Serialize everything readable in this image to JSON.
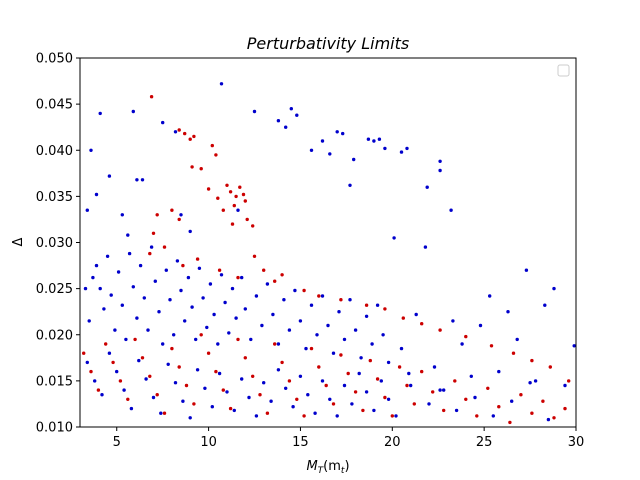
{
  "chart_data": {
    "type": "scatter",
    "title": "Perturbativity Limits",
    "xlabel": "M_T(m_t)",
    "xlabel_main": "M",
    "xlabel_sub": "T",
    "xlabel_rest": "(m",
    "xlabel_sub2": "t",
    "xlabel_end": ")",
    "ylabel": "Δ",
    "xlim": [
      3,
      30
    ],
    "ylim": [
      0.01,
      0.05
    ],
    "xticks": [
      5,
      10,
      15,
      20,
      25,
      30
    ],
    "yticks": [
      0.01,
      0.015,
      0.02,
      0.025,
      0.03,
      0.035,
      0.04,
      0.045,
      0.05
    ],
    "xtick_labels": [
      "5",
      "10",
      "15",
      "20",
      "25",
      "30"
    ],
    "ytick_labels": [
      "0.010",
      "0.015",
      "0.020",
      "0.025",
      "0.030",
      "0.035",
      "0.040",
      "0.045",
      "0.050"
    ],
    "legend": {
      "placement": "top-right",
      "entries": []
    },
    "grid": false,
    "series": [
      {
        "color": "#0000cc",
        "points": [
          [
            3.4,
            0.0335
          ],
          [
            3.6,
            0.04
          ],
          [
            3.9,
            0.0352
          ],
          [
            4.1,
            0.044
          ],
          [
            4.6,
            0.0372
          ],
          [
            5.3,
            0.033
          ],
          [
            5.6,
            0.0308
          ],
          [
            5.9,
            0.0442
          ],
          [
            6.1,
            0.0368
          ],
          [
            6.4,
            0.0368
          ],
          [
            7.5,
            0.043
          ],
          [
            8.2,
            0.042
          ],
          [
            8.5,
            0.033
          ],
          [
            9.0,
            0.0312
          ],
          [
            10.7,
            0.0472
          ],
          [
            11.6,
            0.0335
          ],
          [
            12.5,
            0.0442
          ],
          [
            13.8,
            0.0432
          ],
          [
            14.2,
            0.0425
          ],
          [
            14.5,
            0.0445
          ],
          [
            14.8,
            0.0438
          ],
          [
            15.6,
            0.04
          ],
          [
            16.2,
            0.041
          ],
          [
            16.6,
            0.0396
          ],
          [
            17.0,
            0.042
          ],
          [
            17.3,
            0.0418
          ],
          [
            17.7,
            0.0362
          ],
          [
            17.9,
            0.039
          ],
          [
            18.7,
            0.0412
          ],
          [
            19.0,
            0.041
          ],
          [
            19.3,
            0.0412
          ],
          [
            19.6,
            0.0402
          ],
          [
            20.5,
            0.0398
          ],
          [
            20.8,
            0.0402
          ],
          [
            21.9,
            0.036
          ],
          [
            22.6,
            0.0388
          ],
          [
            22.6,
            0.0378
          ],
          [
            23.2,
            0.0335
          ],
          [
            3.3,
            0.025
          ],
          [
            3.5,
            0.0215
          ],
          [
            3.7,
            0.0262
          ],
          [
            3.9,
            0.0275
          ],
          [
            4.1,
            0.025
          ],
          [
            4.3,
            0.0228
          ],
          [
            4.5,
            0.0285
          ],
          [
            4.7,
            0.0243
          ],
          [
            4.9,
            0.0205
          ],
          [
            5.1,
            0.0268
          ],
          [
            5.3,
            0.0232
          ],
          [
            5.5,
            0.0195
          ],
          [
            5.7,
            0.0288
          ],
          [
            5.9,
            0.0252
          ],
          [
            6.1,
            0.0218
          ],
          [
            6.3,
            0.0275
          ],
          [
            6.5,
            0.024
          ],
          [
            6.7,
            0.0205
          ],
          [
            6.9,
            0.0295
          ],
          [
            7.1,
            0.0258
          ],
          [
            7.3,
            0.0225
          ],
          [
            7.5,
            0.019
          ],
          [
            7.7,
            0.027
          ],
          [
            7.9,
            0.0238
          ],
          [
            8.1,
            0.02
          ],
          [
            8.3,
            0.028
          ],
          [
            8.5,
            0.0248
          ],
          [
            8.7,
            0.0215
          ],
          [
            8.9,
            0.0262
          ],
          [
            9.1,
            0.023
          ],
          [
            9.3,
            0.0195
          ],
          [
            9.5,
            0.0272
          ],
          [
            9.7,
            0.024
          ],
          [
            9.9,
            0.0208
          ],
          [
            10.1,
            0.0255
          ],
          [
            10.3,
            0.0222
          ],
          [
            10.5,
            0.019
          ],
          [
            10.7,
            0.0265
          ],
          [
            10.9,
            0.0235
          ],
          [
            11.1,
            0.0202
          ],
          [
            11.3,
            0.025
          ],
          [
            11.5,
            0.0218
          ],
          [
            11.8,
            0.0262
          ],
          [
            12.0,
            0.0228
          ],
          [
            12.3,
            0.0195
          ],
          [
            12.6,
            0.0242
          ],
          [
            12.9,
            0.021
          ],
          [
            13.2,
            0.0255
          ],
          [
            13.5,
            0.0222
          ],
          [
            13.8,
            0.019
          ],
          [
            14.1,
            0.0238
          ],
          [
            14.4,
            0.0205
          ],
          [
            14.7,
            0.0248
          ],
          [
            15.0,
            0.0215
          ],
          [
            15.3,
            0.0185
          ],
          [
            15.6,
            0.0232
          ],
          [
            15.9,
            0.02
          ],
          [
            16.2,
            0.0242
          ],
          [
            16.5,
            0.021
          ],
          [
            16.8,
            0.018
          ],
          [
            17.1,
            0.0225
          ],
          [
            17.4,
            0.0195
          ],
          [
            17.7,
            0.0238
          ],
          [
            18.0,
            0.0205
          ],
          [
            18.3,
            0.0175
          ],
          [
            18.6,
            0.022
          ],
          [
            18.9,
            0.019
          ],
          [
            19.2,
            0.0232
          ],
          [
            19.5,
            0.02
          ],
          [
            19.8,
            0.017
          ],
          [
            20.1,
            0.0305
          ],
          [
            20.5,
            0.0185
          ],
          [
            20.9,
            0.0158
          ],
          [
            21.3,
            0.0222
          ],
          [
            21.8,
            0.0295
          ],
          [
            22.3,
            0.0165
          ],
          [
            22.8,
            0.014
          ],
          [
            23.3,
            0.0215
          ],
          [
            23.8,
            0.019
          ],
          [
            24.3,
            0.0155
          ],
          [
            24.8,
            0.021
          ],
          [
            25.3,
            0.0242
          ],
          [
            25.8,
            0.016
          ],
          [
            26.3,
            0.0225
          ],
          [
            26.8,
            0.0195
          ],
          [
            27.3,
            0.027
          ],
          [
            27.8,
            0.015
          ],
          [
            28.3,
            0.0232
          ],
          [
            28.8,
            0.025
          ],
          [
            29.4,
            0.0145
          ],
          [
            29.9,
            0.0188
          ],
          [
            3.4,
            0.017
          ],
          [
            3.8,
            0.015
          ],
          [
            4.2,
            0.0135
          ],
          [
            4.6,
            0.018
          ],
          [
            5.0,
            0.016
          ],
          [
            5.4,
            0.014
          ],
          [
            5.8,
            0.012
          ],
          [
            6.2,
            0.0172
          ],
          [
            6.6,
            0.0152
          ],
          [
            7.0,
            0.0132
          ],
          [
            7.4,
            0.0115
          ],
          [
            7.8,
            0.0168
          ],
          [
            8.2,
            0.0148
          ],
          [
            8.6,
            0.0128
          ],
          [
            9.0,
            0.011
          ],
          [
            9.4,
            0.0162
          ],
          [
            9.8,
            0.0142
          ],
          [
            10.2,
            0.0122
          ],
          [
            10.6,
            0.0158
          ],
          [
            11.0,
            0.0138
          ],
          [
            11.4,
            0.0118
          ],
          [
            11.8,
            0.0152
          ],
          [
            12.2,
            0.0132
          ],
          [
            12.6,
            0.0112
          ],
          [
            13.0,
            0.0148
          ],
          [
            13.4,
            0.0128
          ],
          [
            13.8,
            0.0162
          ],
          [
            14.2,
            0.0142
          ],
          [
            14.6,
            0.0122
          ],
          [
            15.0,
            0.0155
          ],
          [
            15.4,
            0.0135
          ],
          [
            15.8,
            0.0115
          ],
          [
            16.2,
            0.015
          ],
          [
            16.6,
            0.013
          ],
          [
            17.0,
            0.0112
          ],
          [
            17.4,
            0.0145
          ],
          [
            17.8,
            0.0125
          ],
          [
            18.2,
            0.0158
          ],
          [
            18.6,
            0.0138
          ],
          [
            19.0,
            0.0118
          ],
          [
            19.4,
            0.015
          ],
          [
            19.8,
            0.013
          ],
          [
            20.2,
            0.0112
          ],
          [
            21.0,
            0.0145
          ],
          [
            22.0,
            0.0125
          ],
          [
            22.6,
            0.014
          ],
          [
            23.5,
            0.0118
          ],
          [
            24.5,
            0.0132
          ],
          [
            25.5,
            0.0112
          ],
          [
            26.5,
            0.0128
          ],
          [
            27.5,
            0.0148
          ],
          [
            28.5,
            0.0108
          ]
        ]
      },
      {
        "color": "#cc0000",
        "points": [
          [
            6.9,
            0.0458
          ],
          [
            8.4,
            0.0422
          ],
          [
            8.7,
            0.0418
          ],
          [
            9.0,
            0.0412
          ],
          [
            9.2,
            0.0415
          ],
          [
            10.2,
            0.0405
          ],
          [
            10.4,
            0.0395
          ],
          [
            9.1,
            0.0382
          ],
          [
            9.6,
            0.038
          ],
          [
            10.0,
            0.0358
          ],
          [
            10.5,
            0.0348
          ],
          [
            11.0,
            0.0362
          ],
          [
            11.2,
            0.0355
          ],
          [
            11.5,
            0.035
          ],
          [
            11.7,
            0.036
          ],
          [
            11.9,
            0.0352
          ],
          [
            12.0,
            0.0345
          ],
          [
            11.4,
            0.034
          ],
          [
            10.8,
            0.0335
          ],
          [
            11.3,
            0.032
          ],
          [
            12.1,
            0.0325
          ],
          [
            12.4,
            0.0318
          ],
          [
            8.0,
            0.0335
          ],
          [
            8.4,
            0.0325
          ],
          [
            7.2,
            0.033
          ],
          [
            7.0,
            0.031
          ],
          [
            6.8,
            0.0288
          ],
          [
            7.6,
            0.0295
          ],
          [
            8.6,
            0.0275
          ],
          [
            9.4,
            0.0282
          ],
          [
            10.6,
            0.027
          ],
          [
            11.6,
            0.0262
          ],
          [
            12.5,
            0.0285
          ],
          [
            13.0,
            0.027
          ],
          [
            13.6,
            0.0258
          ],
          [
            14.0,
            0.0265
          ],
          [
            15.2,
            0.0248
          ],
          [
            16.0,
            0.0242
          ],
          [
            17.2,
            0.0238
          ],
          [
            18.6,
            0.0232
          ],
          [
            19.6,
            0.0228
          ],
          [
            20.6,
            0.0218
          ],
          [
            21.6,
            0.0212
          ],
          [
            22.6,
            0.0205
          ],
          [
            24.0,
            0.0198
          ],
          [
            25.4,
            0.0188
          ],
          [
            26.6,
            0.018
          ],
          [
            27.6,
            0.0172
          ],
          [
            28.6,
            0.0165
          ],
          [
            29.6,
            0.015
          ],
          [
            3.2,
            0.018
          ],
          [
            3.6,
            0.016
          ],
          [
            4.0,
            0.014
          ],
          [
            4.4,
            0.019
          ],
          [
            4.8,
            0.017
          ],
          [
            5.2,
            0.015
          ],
          [
            5.6,
            0.013
          ],
          [
            6.0,
            0.0195
          ],
          [
            6.4,
            0.0175
          ],
          [
            6.8,
            0.0155
          ],
          [
            7.2,
            0.0135
          ],
          [
            7.6,
            0.0115
          ],
          [
            8.0,
            0.0185
          ],
          [
            8.4,
            0.0165
          ],
          [
            8.8,
            0.0145
          ],
          [
            9.2,
            0.0125
          ],
          [
            9.6,
            0.02
          ],
          [
            10.0,
            0.018
          ],
          [
            10.4,
            0.016
          ],
          [
            10.8,
            0.014
          ],
          [
            11.2,
            0.012
          ],
          [
            11.6,
            0.0195
          ],
          [
            12.0,
            0.0175
          ],
          [
            12.4,
            0.0155
          ],
          [
            12.8,
            0.0135
          ],
          [
            13.2,
            0.0115
          ],
          [
            13.6,
            0.019
          ],
          [
            14.0,
            0.017
          ],
          [
            14.4,
            0.015
          ],
          [
            14.8,
            0.013
          ],
          [
            15.2,
            0.0112
          ],
          [
            15.6,
            0.0185
          ],
          [
            16.0,
            0.0165
          ],
          [
            16.4,
            0.0145
          ],
          [
            16.8,
            0.0125
          ],
          [
            17.2,
            0.0178
          ],
          [
            17.6,
            0.0158
          ],
          [
            18.0,
            0.0138
          ],
          [
            18.4,
            0.0118
          ],
          [
            18.8,
            0.0172
          ],
          [
            19.2,
            0.0152
          ],
          [
            19.6,
            0.0132
          ],
          [
            20.0,
            0.0112
          ],
          [
            20.4,
            0.0165
          ],
          [
            20.8,
            0.0145
          ],
          [
            21.2,
            0.0125
          ],
          [
            21.6,
            0.016
          ],
          [
            22.2,
            0.0138
          ],
          [
            22.8,
            0.0118
          ],
          [
            23.4,
            0.015
          ],
          [
            24.0,
            0.013
          ],
          [
            24.6,
            0.0112
          ],
          [
            25.2,
            0.0142
          ],
          [
            25.8,
            0.0122
          ],
          [
            26.4,
            0.0105
          ],
          [
            27.0,
            0.0135
          ],
          [
            27.6,
            0.0115
          ],
          [
            28.2,
            0.0128
          ],
          [
            28.8,
            0.011
          ],
          [
            29.4,
            0.012
          ]
        ]
      }
    ]
  }
}
